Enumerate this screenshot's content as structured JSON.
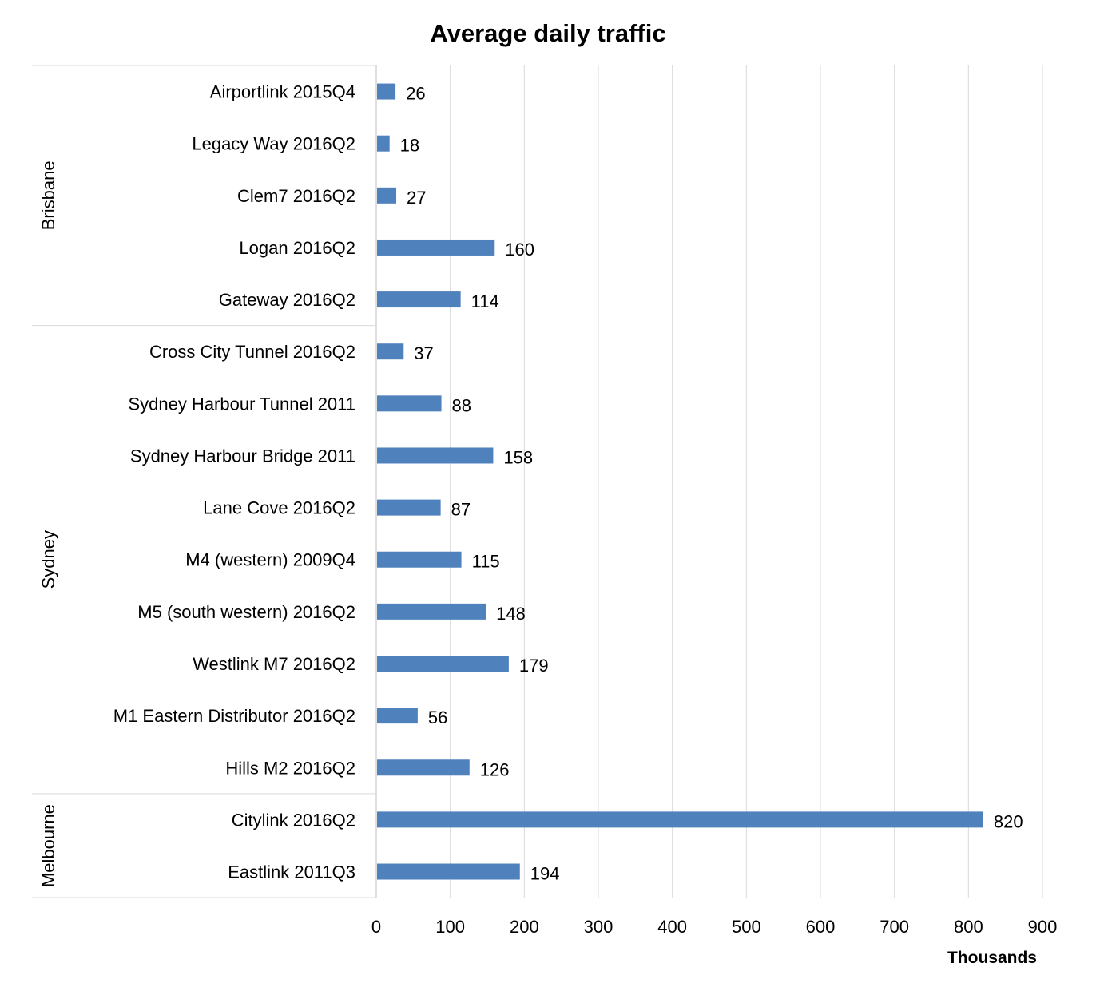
{
  "chart_data": {
    "type": "bar",
    "orientation": "horizontal",
    "title": "Average daily traffic",
    "xlabel": "Thousands",
    "ylabel": "",
    "xlim": [
      0,
      900
    ],
    "xticks": [
      "0",
      "100",
      "200",
      "300",
      "400",
      "500",
      "600",
      "700",
      "800",
      "900"
    ],
    "grid": true,
    "legend": "none",
    "bar_color": "#4f81bd",
    "groups": [
      {
        "name": "Brisbane",
        "categories": [
          "Airportlink 2015Q4",
          "Legacy Way 2016Q2",
          "Clem7 2016Q2",
          "Logan 2016Q2",
          "Gateway 2016Q2"
        ],
        "values": [
          26,
          18,
          27,
          160,
          114
        ]
      },
      {
        "name": "Sydney",
        "categories": [
          "Cross City Tunnel 2016Q2",
          "Sydney Harbour Tunnel 2011",
          "Sydney Harbour Bridge 2011",
          "Lane Cove 2016Q2",
          "M4 (western) 2009Q4",
          "M5 (south western) 2016Q2",
          "Westlink M7 2016Q2",
          "M1 Eastern Distributor 2016Q2",
          "Hills M2 2016Q2"
        ],
        "values": [
          37,
          88,
          158,
          87,
          115,
          148,
          179,
          56,
          126
        ]
      },
      {
        "name": "Melbourne",
        "categories": [
          "Citylink 2016Q2",
          "Eastlink 2011Q3"
        ],
        "values": [
          820,
          194
        ]
      }
    ]
  }
}
